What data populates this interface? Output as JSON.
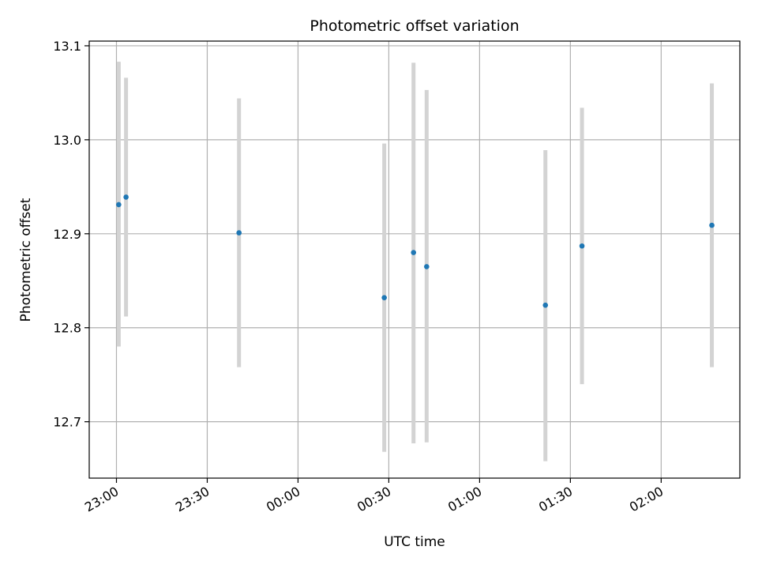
{
  "chart_data": {
    "type": "scatter",
    "title": "Photometric offset variation",
    "xlabel": "UTC time",
    "ylabel": "Photometric offset",
    "x_axis": {
      "type": "time",
      "range": [
        "22:51",
        "02:26"
      ],
      "ticks": [
        "23:00",
        "23:30",
        "00:00",
        "00:30",
        "01:00",
        "01:30",
        "02:00"
      ]
    },
    "y_axis": {
      "range": [
        12.64,
        13.105
      ],
      "ticks": [
        "12.7",
        "12.8",
        "12.9",
        "13.0",
        "13.1"
      ]
    },
    "grid": true,
    "colors": {
      "point": "#1f77b4",
      "errorbar": "#d3d3d3",
      "grid": "#b0b0b0"
    },
    "points": [
      {
        "x": "23:00:45",
        "y": 12.931,
        "err_low": 12.78,
        "err_high": 13.083
      },
      {
        "x": "23:03:10",
        "y": 12.939,
        "err_low": 12.812,
        "err_high": 13.066
      },
      {
        "x": "23:40:30",
        "y": 12.901,
        "err_low": 12.758,
        "err_high": 13.044
      },
      {
        "x": "00:28:30",
        "y": 12.832,
        "err_low": 12.668,
        "err_high": 12.996
      },
      {
        "x": "00:38:10",
        "y": 12.88,
        "err_low": 12.677,
        "err_high": 13.082
      },
      {
        "x": "00:42:30",
        "y": 12.865,
        "err_low": 12.678,
        "err_high": 13.053
      },
      {
        "x": "01:21:45",
        "y": 12.824,
        "err_low": 12.658,
        "err_high": 12.989
      },
      {
        "x": "01:33:50",
        "y": 12.887,
        "err_low": 12.74,
        "err_high": 13.034
      },
      {
        "x": "02:16:45",
        "y": 12.909,
        "err_low": 12.758,
        "err_high": 13.06
      }
    ]
  }
}
